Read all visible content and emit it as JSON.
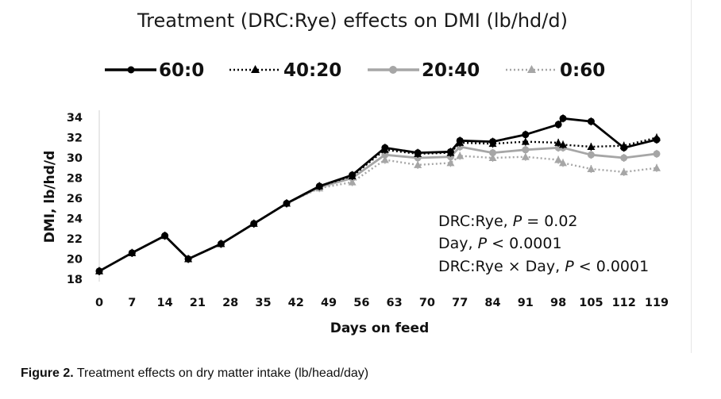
{
  "chart_data": {
    "type": "line",
    "title": "Treatment (DRC:Rye) effects on DMI (lb/hd/d)",
    "xlabel": "Days on feed",
    "ylabel": "DMI, lb/hd/d",
    "x": [
      0,
      7,
      14,
      21,
      28,
      35,
      42,
      49,
      56,
      63,
      70,
      77,
      84,
      91,
      98,
      105,
      112,
      119
    ],
    "x_ticks": [
      "0",
      "7",
      "14",
      "21",
      "28",
      "35",
      "42",
      "49",
      "56",
      "63",
      "70",
      "77",
      "84",
      "91",
      "98",
      "105",
      "112",
      "119"
    ],
    "xlim": [
      0,
      119
    ],
    "ylim": [
      18,
      34
    ],
    "y_ticks": [
      "18",
      "20",
      "22",
      "24",
      "26",
      "28",
      "30",
      "32",
      "34"
    ],
    "grid": false,
    "legend_position": "top",
    "series": [
      {
        "name": "60:0",
        "color": "#000000",
        "line": "solid",
        "marker": "circle",
        "x": [
          0,
          7,
          14,
          19,
          26,
          33,
          40,
          47,
          54,
          61,
          68,
          75,
          77,
          84,
          91,
          98,
          99,
          105,
          112,
          119
        ],
        "values": [
          18.8,
          20.6,
          22.3,
          20.0,
          21.5,
          23.5,
          25.5,
          27.2,
          28.3,
          31.0,
          30.5,
          30.6,
          31.7,
          31.6,
          32.3,
          33.3,
          33.9,
          33.6,
          31.0,
          31.8
        ]
      },
      {
        "name": "40:20",
        "color": "#000000",
        "line": "dotted",
        "marker": "triangle",
        "x": [
          0,
          7,
          14,
          19,
          26,
          33,
          40,
          47,
          54,
          61,
          68,
          75,
          77,
          84,
          91,
          98,
          99,
          105,
          112,
          119
        ],
        "values": [
          18.8,
          20.6,
          22.3,
          20.0,
          21.5,
          23.5,
          25.5,
          27.2,
          28.2,
          30.8,
          30.4,
          30.5,
          31.5,
          31.4,
          31.6,
          31.5,
          31.3,
          31.1,
          31.2,
          32.0
        ]
      },
      {
        "name": "20:40",
        "color": "#a6a6a6",
        "line": "solid",
        "marker": "circle",
        "x": [
          0,
          7,
          14,
          19,
          26,
          33,
          40,
          47,
          54,
          61,
          68,
          75,
          77,
          84,
          91,
          98,
          99,
          105,
          112,
          119
        ],
        "values": [
          18.8,
          20.6,
          22.3,
          20.0,
          21.5,
          23.5,
          25.5,
          27.1,
          28.0,
          30.3,
          30.0,
          30.1,
          31.1,
          30.5,
          30.8,
          31.0,
          31.0,
          30.3,
          30.0,
          30.4
        ]
      },
      {
        "name": "0:60",
        "color": "#a6a6a6",
        "line": "dotted",
        "marker": "triangle",
        "x": [
          0,
          7,
          14,
          19,
          26,
          33,
          40,
          47,
          54,
          61,
          68,
          75,
          77,
          84,
          91,
          98,
          99,
          105,
          112,
          119
        ],
        "values": [
          18.8,
          20.6,
          22.3,
          20.0,
          21.5,
          23.5,
          25.5,
          27.0,
          27.6,
          29.8,
          29.3,
          29.5,
          30.2,
          30.0,
          30.1,
          29.8,
          29.5,
          28.9,
          28.6,
          29.0
        ]
      }
    ],
    "annotations": [
      {
        "label": "DRC:Rye, ",
        "p": "P",
        "rest": " = 0.02"
      },
      {
        "label": "Day, ",
        "p": "P",
        "rest": " < 0.0001"
      },
      {
        "label": "DRC:Rye × Day, ",
        "p": "P",
        "rest": " < 0.0001"
      }
    ]
  },
  "caption": {
    "figure_label": "Figure 2.",
    "text": " Treatment effects on dry matter intake (lb/head/day)"
  }
}
